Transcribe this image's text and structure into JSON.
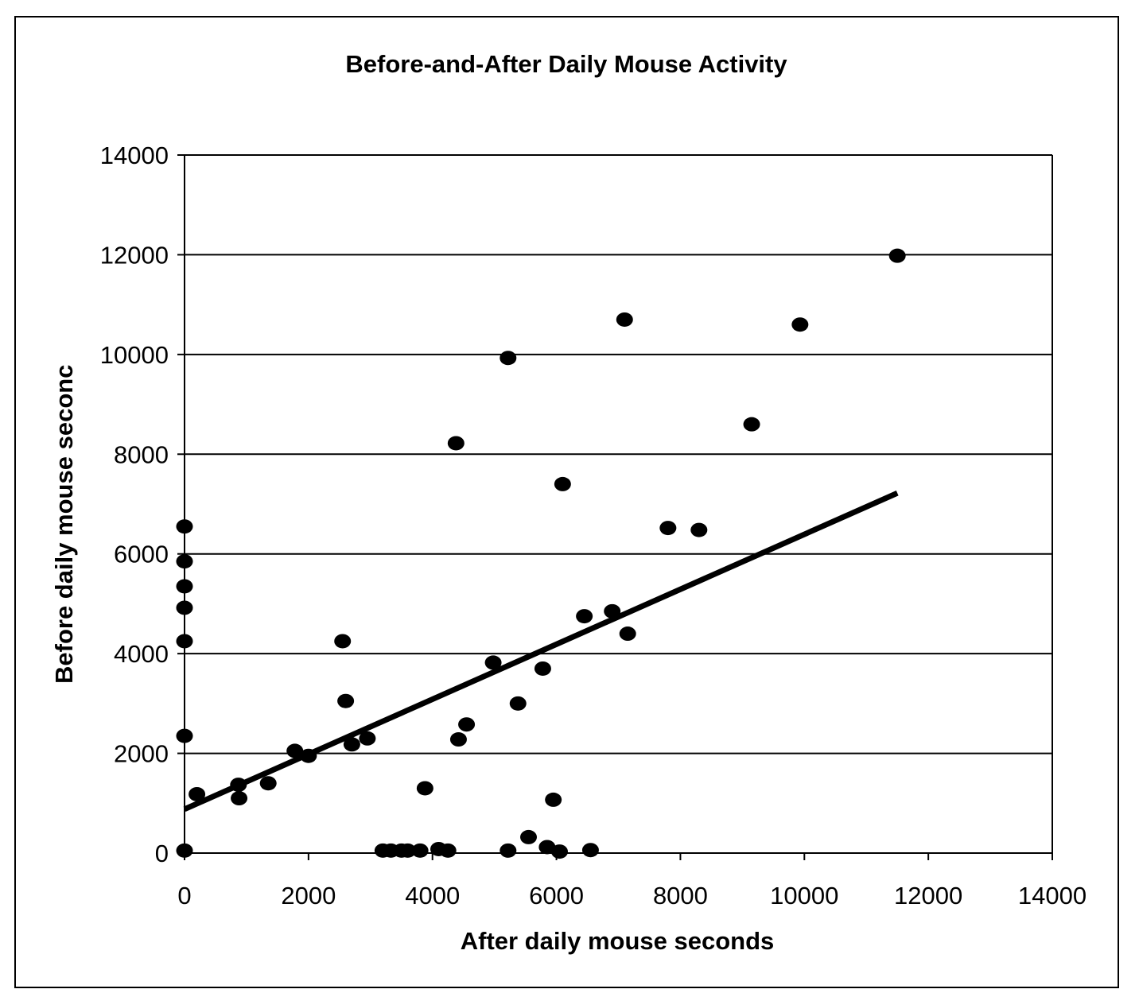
{
  "chart_data": {
    "type": "scatter",
    "title": "Before-and-After Daily Mouse Activity",
    "xlabel": "After daily mouse seconds",
    "ylabel": "Before daily mouse seconc",
    "xlim": [
      0,
      14000
    ],
    "ylim": [
      0,
      14000
    ],
    "x_ticks": [
      "0",
      "2000",
      "4000",
      "6000",
      "8000",
      "10000",
      "12000",
      "14000"
    ],
    "y_ticks": [
      "0",
      "2000",
      "4000",
      "6000",
      "8000",
      "10000",
      "12000",
      "14000"
    ],
    "grid": "horizontal",
    "legend": "none",
    "marker_color": "#000000",
    "points": [
      {
        "x": 0,
        "y": 6550
      },
      {
        "x": 0,
        "y": 5850
      },
      {
        "x": 0,
        "y": 5350
      },
      {
        "x": 0,
        "y": 4920
      },
      {
        "x": 0,
        "y": 4250
      },
      {
        "x": 0,
        "y": 2350
      },
      {
        "x": 0,
        "y": 50
      },
      {
        "x": 200,
        "y": 1180
      },
      {
        "x": 870,
        "y": 1370
      },
      {
        "x": 880,
        "y": 1100
      },
      {
        "x": 1350,
        "y": 1400
      },
      {
        "x": 1780,
        "y": 2050
      },
      {
        "x": 2000,
        "y": 1950
      },
      {
        "x": 2550,
        "y": 4250
      },
      {
        "x": 2600,
        "y": 3050
      },
      {
        "x": 2700,
        "y": 2180
      },
      {
        "x": 2950,
        "y": 2300
      },
      {
        "x": 3200,
        "y": 50
      },
      {
        "x": 3330,
        "y": 50
      },
      {
        "x": 3500,
        "y": 50
      },
      {
        "x": 3600,
        "y": 50
      },
      {
        "x": 3800,
        "y": 50
      },
      {
        "x": 3880,
        "y": 1300
      },
      {
        "x": 4100,
        "y": 80
      },
      {
        "x": 4250,
        "y": 50
      },
      {
        "x": 4380,
        "y": 8220
      },
      {
        "x": 4420,
        "y": 2280
      },
      {
        "x": 4550,
        "y": 2580
      },
      {
        "x": 4980,
        "y": 3820
      },
      {
        "x": 5220,
        "y": 9930
      },
      {
        "x": 5220,
        "y": 50
      },
      {
        "x": 5380,
        "y": 3000
      },
      {
        "x": 5550,
        "y": 320
      },
      {
        "x": 5780,
        "y": 3700
      },
      {
        "x": 5850,
        "y": 120
      },
      {
        "x": 5950,
        "y": 1070
      },
      {
        "x": 6050,
        "y": 30
      },
      {
        "x": 6100,
        "y": 7400
      },
      {
        "x": 6450,
        "y": 4750
      },
      {
        "x": 6550,
        "y": 60
      },
      {
        "x": 6900,
        "y": 4850
      },
      {
        "x": 7100,
        "y": 10700
      },
      {
        "x": 7150,
        "y": 4400
      },
      {
        "x": 7800,
        "y": 6520
      },
      {
        "x": 8300,
        "y": 6480
      },
      {
        "x": 9150,
        "y": 8600
      },
      {
        "x": 9930,
        "y": 10600
      },
      {
        "x": 11500,
        "y": 11980
      }
    ],
    "trendline": {
      "type": "linear",
      "x": [
        0,
        11500
      ],
      "y": [
        880,
        7220
      ]
    }
  }
}
